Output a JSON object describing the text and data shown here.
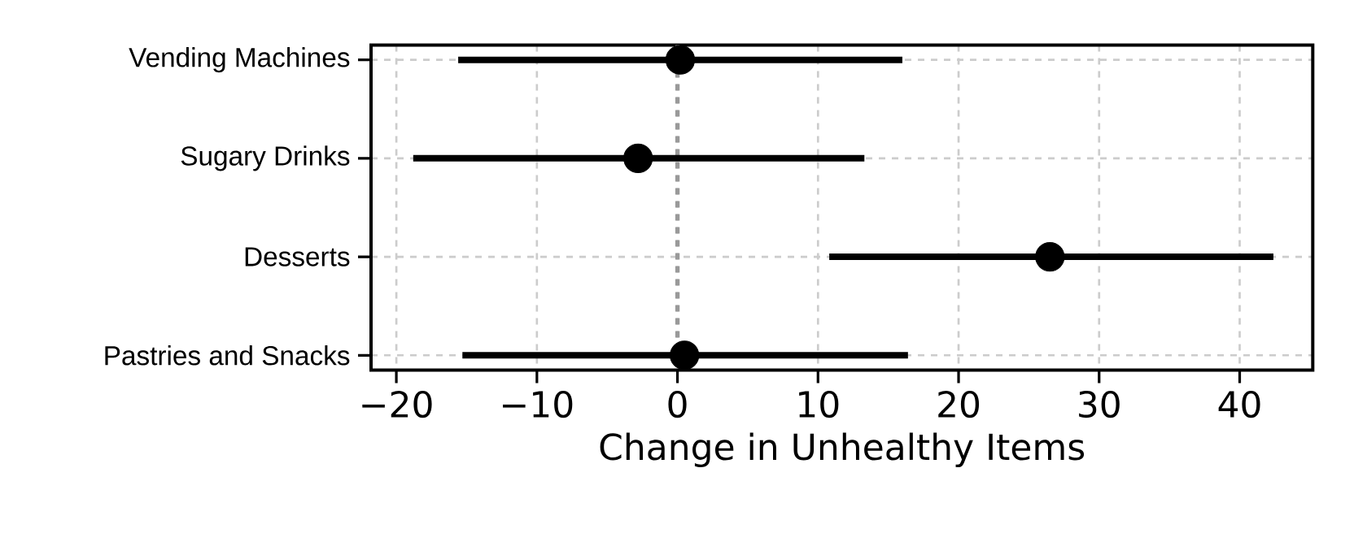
{
  "chart_data": {
    "type": "scatter",
    "orientation": "horizontal",
    "xlabel": "Change in Unhealthy Items",
    "categories": [
      "Vending Machines",
      "Sugary Drinks",
      "Desserts",
      "Pastries and Snacks"
    ],
    "values": [
      0.2,
      -2.8,
      26.5,
      0.5
    ],
    "errors": [
      [
        -15.6,
        16.0
      ],
      [
        -18.8,
        13.3
      ],
      [
        10.8,
        42.4
      ],
      [
        -15.3,
        16.4
      ]
    ],
    "color": "#000000",
    "marker": "circle",
    "xlim": [
      -21.8,
      45.2
    ],
    "xticks": [
      {
        "value": -20,
        "label": "−20"
      },
      {
        "value": -10,
        "label": "−10"
      },
      0,
      10,
      20,
      30,
      40
    ],
    "grid": true,
    "ref_lines": [
      {
        "axis": "x",
        "value": 0,
        "color": "#999999",
        "line_style": "dashed"
      }
    ]
  }
}
